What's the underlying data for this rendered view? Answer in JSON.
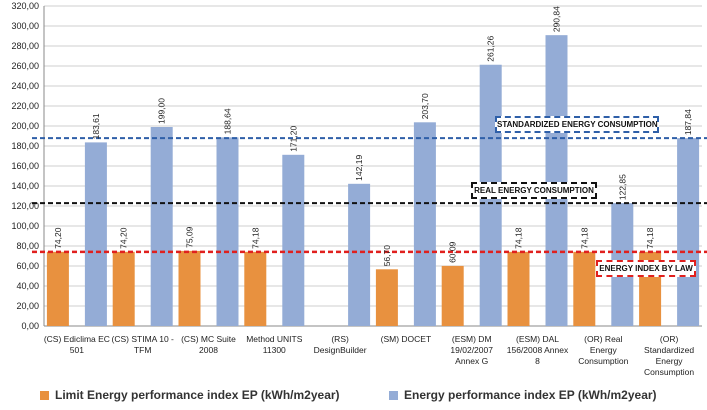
{
  "chart_data": {
    "type": "bar",
    "ylim": [
      0,
      320
    ],
    "ytick_step": 20,
    "y_tick_labels": [
      "0,00",
      "20,00",
      "40,00",
      "60,00",
      "80,00",
      "100,00",
      "120,00",
      "140,00",
      "160,00",
      "180,00",
      "200,00",
      "220,00",
      "240,00",
      "260,00",
      "280,00",
      "300,00",
      "320,00"
    ],
    "categories": [
      [
        "(CS) Ediclima EC",
        "501"
      ],
      [
        "(CS) STIMA 10 -",
        "TFM"
      ],
      [
        "(CS) MC Suite",
        "2008"
      ],
      [
        "Method UNITS",
        "11300"
      ],
      [
        "(RS)",
        "DesignBuilder"
      ],
      [
        "(SM) DOCET"
      ],
      [
        "(ESM) DM",
        "19/02/2007",
        "Annex G"
      ],
      [
        "(ESM) DAL",
        "156/2008 Annex",
        "8"
      ],
      [
        "(OR) Real",
        "Energy",
        "Consumption"
      ],
      [
        "(OR)",
        "Standardized",
        "Energy",
        "Consumption"
      ]
    ],
    "series": [
      {
        "name": "Limit Energy performance index EP (kWh/m2year)",
        "color": "#e8913f",
        "values": [
          74.2,
          74.2,
          75.09,
          74.18,
          null,
          56.7,
          60.09,
          74.18,
          74.18,
          74.18
        ],
        "labels": [
          "74,20",
          "74,20",
          "75,09",
          "74,18",
          null,
          "56,70",
          "60,09",
          "74,18",
          "74,18",
          "74,18"
        ]
      },
      {
        "name": "Energy performance index EP (kWh/m2year)",
        "color": "#94acd6",
        "values": [
          183.61,
          199.0,
          188.64,
          171.2,
          142.19,
          203.7,
          261.26,
          290.84,
          122.85,
          187.84
        ],
        "labels": [
          "183,61",
          "199,00",
          "188,64",
          "171,20",
          "142,19",
          "203,70",
          "261,26",
          "290,84",
          "122,85",
          "187,84"
        ]
      }
    ],
    "reference_lines": [
      {
        "name": "standardized",
        "value": 187.84,
        "color": "#2e5fa8",
        "label": "STANDARDIZED ENERGY CONSUMPTION"
      },
      {
        "name": "real",
        "value": 122.85,
        "color": "#111111",
        "label": "REAL ENERGY CONSUMPTION"
      },
      {
        "name": "law",
        "value": 74.18,
        "color": "#e0201e",
        "label": "ENERGY INDEX BY LAW"
      }
    ],
    "legend_position": "bottom",
    "grid": true
  }
}
